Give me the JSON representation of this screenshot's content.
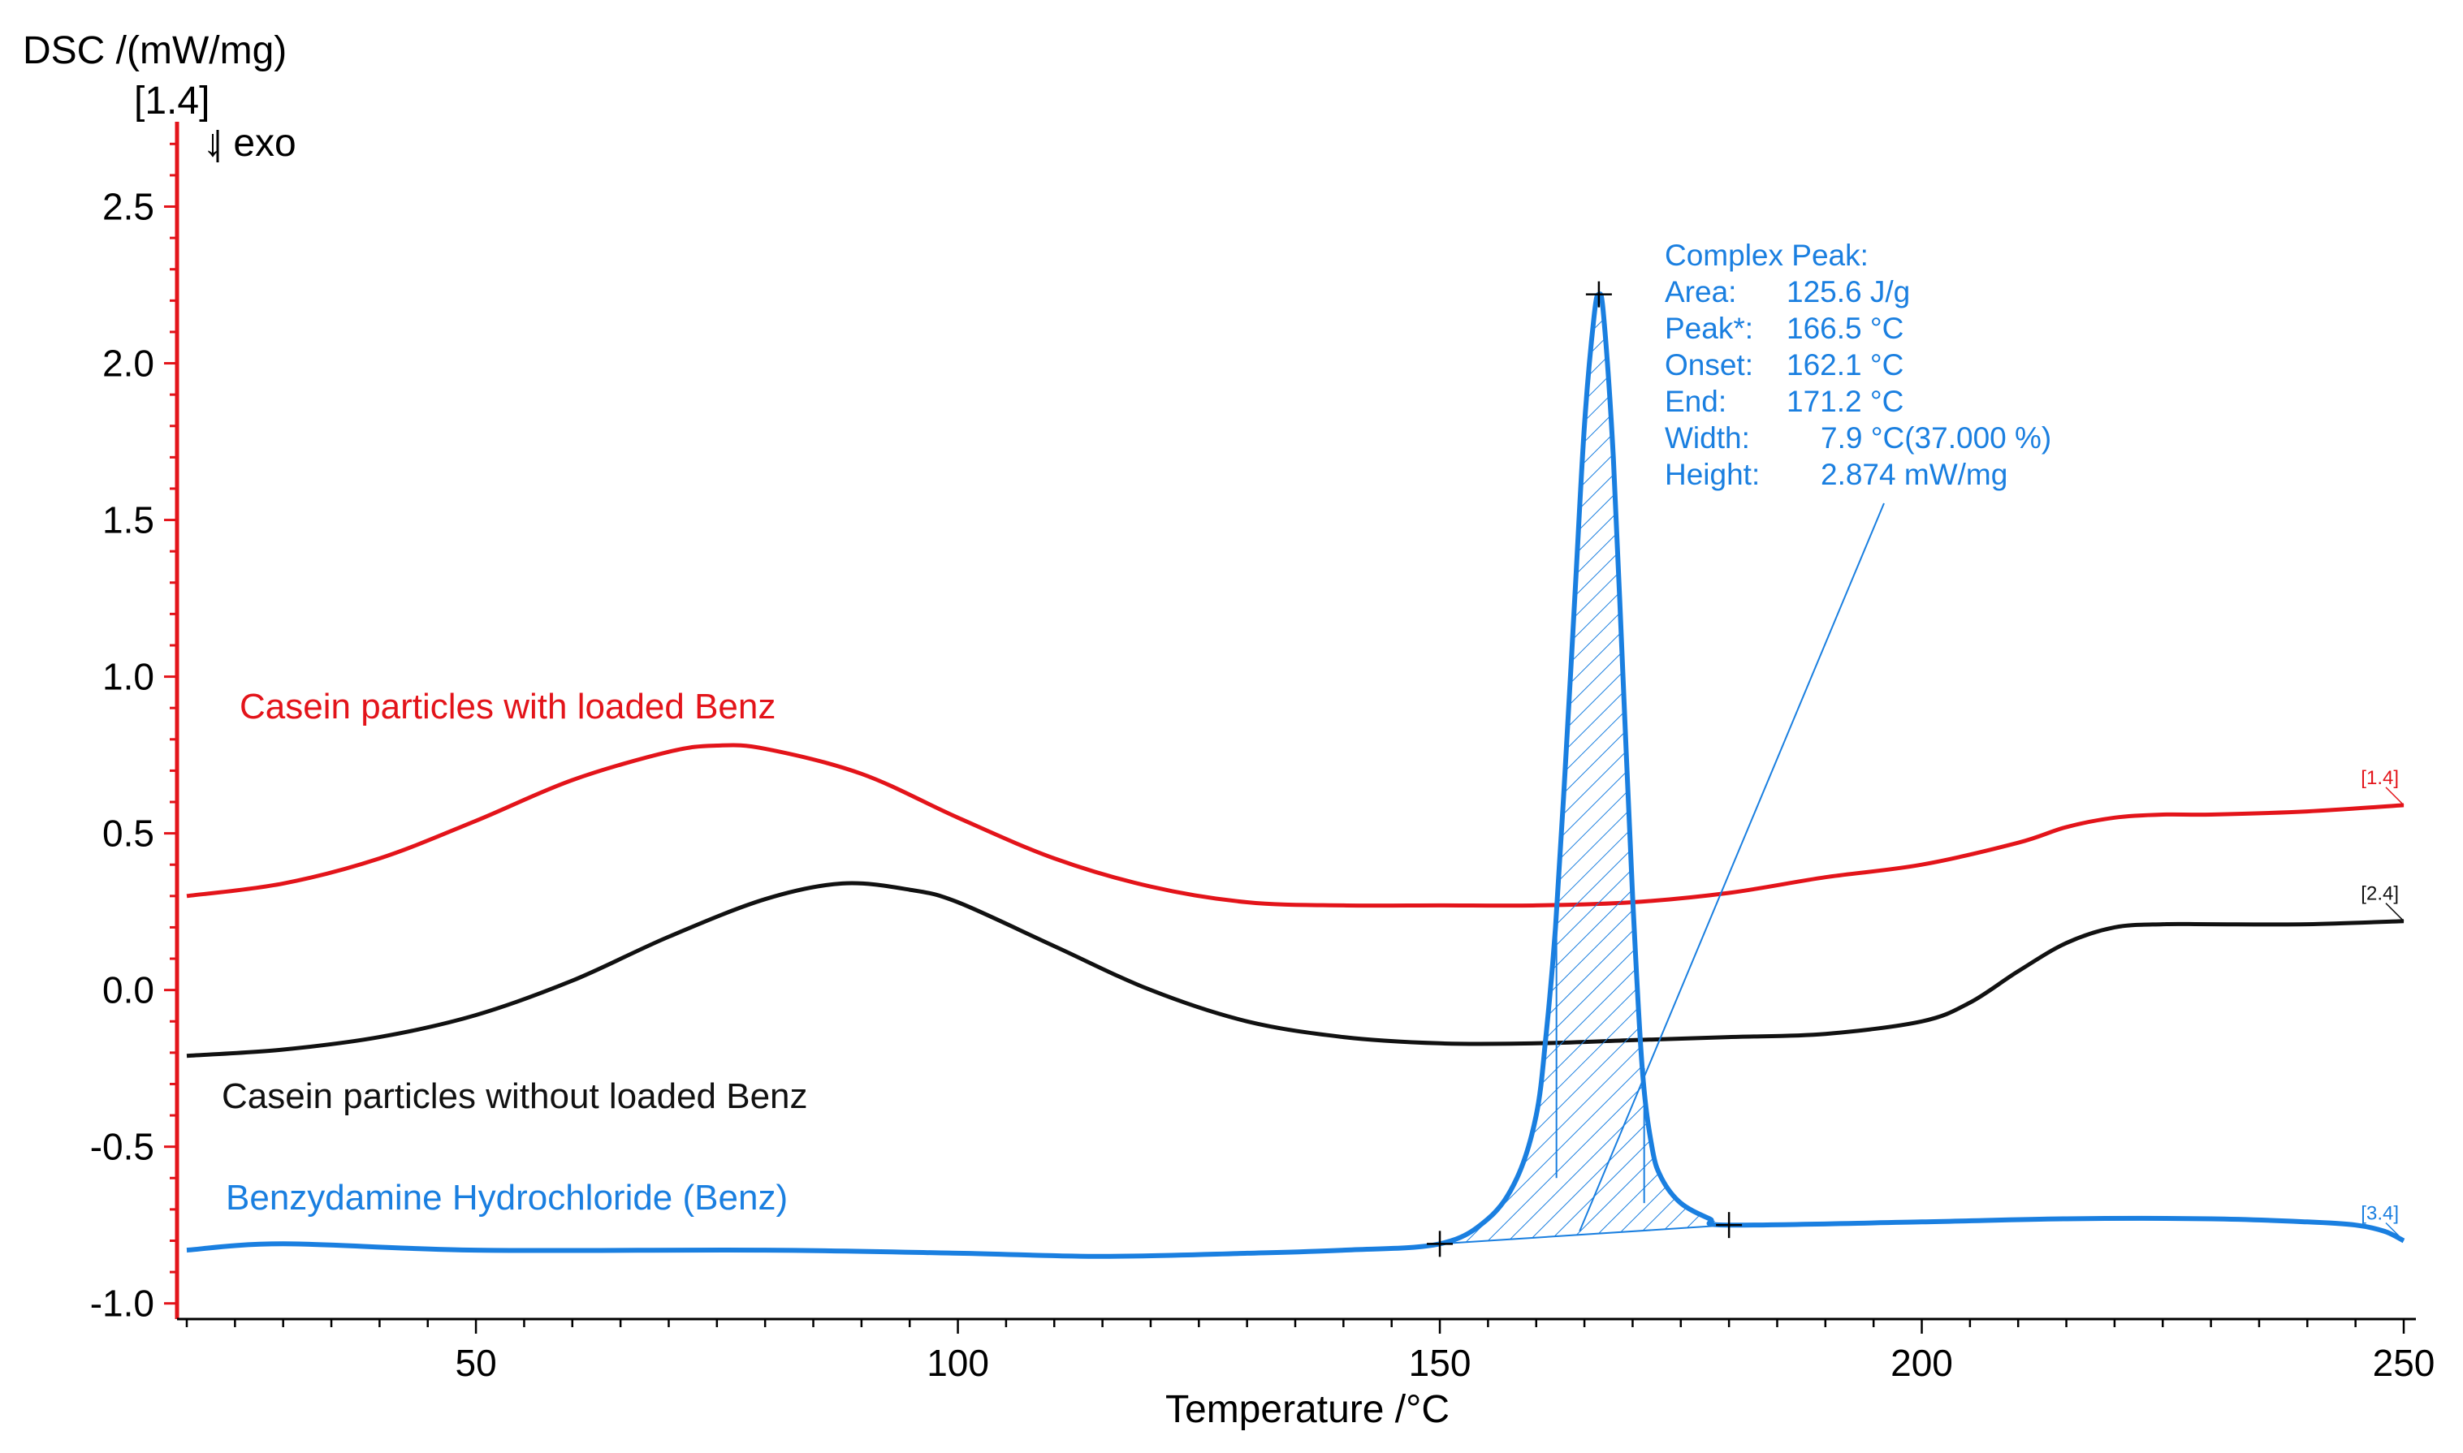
{
  "chart_data": {
    "type": "line",
    "title": "",
    "ylabel": "DSC /(mW/mg)",
    "xlabel": "Temperature /°C",
    "y_segment_marker": "[1.4]",
    "exo_label": "↓ exo",
    "xlim": [
      20,
      250
    ],
    "ylim": [
      -1.05,
      2.75
    ],
    "x_ticks": [
      50,
      100,
      150,
      200,
      250
    ],
    "y_ticks": [
      2.5,
      2.0,
      1.5,
      1.0,
      0.5,
      0.0,
      -0.5,
      -1.0
    ],
    "x_tick_labels": [
      "50",
      "100",
      "150",
      "200",
      "250"
    ],
    "y_tick_labels": [
      "2.5",
      "2.0",
      "1.5",
      "1.0",
      "0.5",
      "0.0",
      "-0.5",
      "-1.0"
    ],
    "series": [
      {
        "name": "Casein particles with loaded Benz",
        "end_label": "[1.4]",
        "color": "#e3141a",
        "x": [
          20,
          30,
          40,
          50,
          60,
          70,
          75,
          80,
          90,
          100,
          110,
          120,
          130,
          140,
          150,
          160,
          170,
          180,
          190,
          200,
          210,
          215,
          220,
          225,
          230,
          240,
          250
        ],
        "y": [
          0.3,
          0.34,
          0.42,
          0.54,
          0.67,
          0.76,
          0.78,
          0.77,
          0.69,
          0.55,
          0.42,
          0.33,
          0.28,
          0.27,
          0.27,
          0.27,
          0.28,
          0.31,
          0.36,
          0.4,
          0.47,
          0.52,
          0.55,
          0.56,
          0.56,
          0.57,
          0.59
        ]
      },
      {
        "name": "Casein particles without loaded Benz",
        "end_label": "[2.4]",
        "color": "#111111",
        "x": [
          20,
          30,
          40,
          50,
          60,
          70,
          80,
          88,
          95,
          100,
          110,
          120,
          130,
          140,
          150,
          160,
          170,
          180,
          190,
          200,
          205,
          210,
          215,
          220,
          225,
          230,
          240,
          250
        ],
        "y": [
          -0.21,
          -0.19,
          -0.15,
          -0.08,
          0.03,
          0.17,
          0.29,
          0.34,
          0.32,
          0.28,
          0.14,
          0.0,
          -0.1,
          -0.15,
          -0.17,
          -0.17,
          -0.16,
          -0.15,
          -0.14,
          -0.1,
          -0.04,
          0.06,
          0.15,
          0.2,
          0.21,
          0.21,
          0.21,
          0.22
        ]
      },
      {
        "name": "Benzydamine Hydrochloride (Benz)",
        "end_label": "[3.4]",
        "color": "#1a7fe0",
        "x": [
          20,
          30,
          50,
          80,
          100,
          115,
          130,
          140,
          150,
          155,
          158,
          160,
          161,
          162,
          163,
          164,
          165,
          166,
          166.5,
          167,
          168,
          169,
          170,
          171,
          172,
          173,
          175,
          178,
          180,
          200,
          215,
          230,
          240,
          245,
          248,
          250
        ],
        "y": [
          -0.83,
          -0.81,
          -0.83,
          -0.83,
          -0.84,
          -0.85,
          -0.84,
          -0.83,
          -0.81,
          -0.73,
          -0.6,
          -0.4,
          -0.15,
          0.2,
          0.7,
          1.25,
          1.8,
          2.15,
          2.22,
          2.15,
          1.7,
          1.0,
          0.3,
          -0.25,
          -0.5,
          -0.6,
          -0.68,
          -0.73,
          -0.75,
          -0.74,
          -0.73,
          -0.73,
          -0.74,
          -0.75,
          -0.77,
          -0.8
        ]
      }
    ],
    "peak_analysis": {
      "title": "Complex Peak:",
      "rows": [
        {
          "label": "Area:",
          "value": "125.6 J/g"
        },
        {
          "label": "Peak*:",
          "value": "166.5 °C"
        },
        {
          "label": "Onset:",
          "value": "162.1 °C"
        },
        {
          "label": "End:",
          "value": "171.2 °C"
        },
        {
          "label": "Width:",
          "value": "7.9 °C(37.000 %)"
        },
        {
          "label": "Height:",
          "value": "2.874 mW/mg"
        }
      ],
      "peak_x": 166.5,
      "peak_y": 2.22,
      "baseline_start": [
        150,
        -0.81
      ],
      "baseline_end": [
        180,
        -0.75
      ],
      "onset_x": 162.1,
      "end_x": 171.2
    }
  }
}
